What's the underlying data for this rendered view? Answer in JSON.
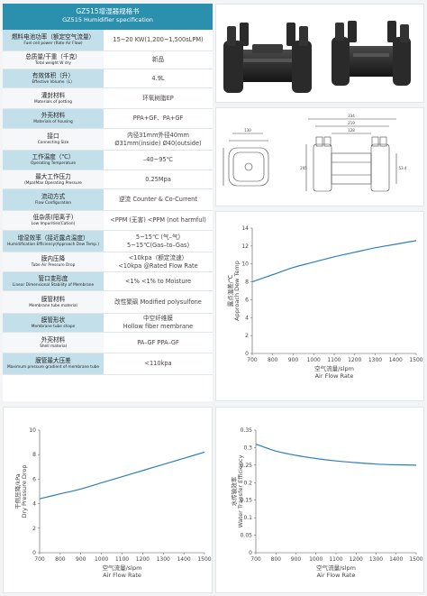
{
  "header": {
    "title_zh": "GZ515增湿器规格书",
    "title_en": "GZ515 Humidifier specification"
  },
  "spec_rows": [
    {
      "zh": "燃料电池功率（额定空气流量）",
      "en": "Fuel cell power (Rate Air Flow)",
      "value": [
        "15~20 KW(1,200~1,500sLPM)"
      ]
    },
    {
      "zh": "总质量/干重（千克）",
      "en": "Total weight W dry",
      "value": [
        "新品"
      ]
    },
    {
      "zh": "有效体积（升）",
      "en": "Effective Volume（L）",
      "value": [
        "4.9L"
      ]
    },
    {
      "zh": "灌封材料",
      "en": "Materials of potting",
      "value": [
        "环氧树脂EP"
      ]
    },
    {
      "zh": "外壳材料",
      "en": "Materials of housing",
      "value": [
        "PPA+GF、PA+GF"
      ]
    },
    {
      "zh": "接口",
      "en": "Connecting Size",
      "value": [
        "内径31mm外径40mm",
        "Ø31mm(inside) Ø40(outside)"
      ]
    },
    {
      "zh": "工作温度（℃）",
      "en": "Operating Temperature",
      "value": [
        "–40~95℃"
      ]
    },
    {
      "zh": "最大工作压力",
      "en": "(Mpa)Max Operating Pressure",
      "value": [
        "0.25Mpa"
      ]
    },
    {
      "zh": "流动方式",
      "en": "Flow Configuration",
      "value": [
        "逆流 Counter & Co-Current"
      ]
    },
    {
      "zh": "低杂质(阳离子)",
      "en": "Low Impurities(Cation)",
      "value": [
        "<PPM (无害) <PPM (not harmful)"
      ]
    },
    {
      "zh": "增湿效率（接近露点温度）",
      "en": "Humidification Efficiency(Approach Dew Temp.)",
      "value": [
        "5~15℃ (气–气)",
        "5~15℃(Gas–to–Gas)"
      ]
    },
    {
      "zh": "膜内压降",
      "en": "Tube Air Pressure Drop",
      "value": [
        "<10kpa（额定流速）",
        "<10kpa @Rated Flow Rate"
      ]
    },
    {
      "zh": "管口变形度",
      "en": "Linear Dimensional Stability of Membrane",
      "value": [
        "<1%  <1% to Moisture"
      ]
    },
    {
      "zh": "膜管材料",
      "en": "Membrane tube material",
      "value": [
        "改性聚砜  Modified polysulfone"
      ]
    },
    {
      "zh": "膜管形状",
      "en": "Membrane tube shape",
      "value": [
        "中空纤维膜",
        "Hollow fiber membrane"
      ]
    },
    {
      "zh": "外壳材料",
      "en": "Shell material",
      "value": [
        "PA–GF  PPA–GF"
      ]
    },
    {
      "zh": "膜管最大压差",
      "en": "Maximum pressure gradient of membrane tube",
      "value": [
        "<110kpa"
      ]
    }
  ],
  "drawing": {
    "dims": [
      "130",
      "205",
      "334",
      "219",
      "128",
      "53.4"
    ]
  },
  "chart_data": [
    {
      "id": "dew",
      "type": "line",
      "title": "",
      "ylabel_zh": "露点温差/℃",
      "ylabel_en": "Approach Dew Temp",
      "xlabel_zh": "空气流量/slpm",
      "xlabel_en": "Air Flow Rate",
      "xlim": [
        700,
        1500
      ],
      "ylim": [
        0,
        14
      ],
      "xticks": [
        700,
        800,
        900,
        1000,
        1100,
        1200,
        1300,
        1400,
        1500
      ],
      "yticks": [
        0,
        2,
        4,
        6,
        8,
        10,
        12,
        14
      ],
      "grid": false,
      "color": "#2e7fb8",
      "x": [
        700,
        800,
        900,
        1000,
        1100,
        1200,
        1300,
        1400,
        1500
      ],
      "y": [
        8.0,
        8.8,
        9.6,
        10.2,
        10.8,
        11.3,
        11.8,
        12.2,
        12.6
      ]
    },
    {
      "id": "drop",
      "type": "line",
      "title": "",
      "ylabel_zh": "干侧压降/kPa",
      "ylabel_en": "Dry Pressure Drop",
      "xlabel_zh": "空气流量/slpm",
      "xlabel_en": "Air Flow Rate",
      "xlim": [
        700,
        1500
      ],
      "ylim": [
        0,
        10
      ],
      "xticks": [
        700,
        800,
        900,
        1000,
        1100,
        1200,
        1300,
        1400,
        1500
      ],
      "yticks": [
        0,
        2,
        4,
        6,
        8,
        10
      ],
      "grid": false,
      "color": "#2e7fb8",
      "x": [
        700,
        800,
        900,
        1000,
        1100,
        1200,
        1300,
        1400,
        1500
      ],
      "y": [
        4.4,
        4.8,
        5.2,
        5.7,
        6.2,
        6.7,
        7.2,
        7.7,
        8.2
      ]
    },
    {
      "id": "eff",
      "type": "line",
      "title": "",
      "ylabel_zh": "水传输效率",
      "ylabel_en": "Water Transfer Efficiency",
      "xlabel_zh": "空气流量/slpm",
      "xlabel_en": "Air Flow Rate",
      "xlim": [
        700,
        1500
      ],
      "ylim": [
        0,
        0.35
      ],
      "xticks": [
        700,
        800,
        900,
        1000,
        1100,
        1200,
        1300,
        1400,
        1500
      ],
      "yticks": [
        0,
        0.05,
        0.1,
        0.15,
        0.2,
        0.25,
        0.3,
        0.35
      ],
      "grid": false,
      "color": "#2e7fb8",
      "x": [
        700,
        800,
        900,
        1000,
        1100,
        1200,
        1300,
        1400,
        1500
      ],
      "y": [
        0.31,
        0.29,
        0.278,
        0.269,
        0.262,
        0.257,
        0.253,
        0.251,
        0.25
      ]
    }
  ]
}
